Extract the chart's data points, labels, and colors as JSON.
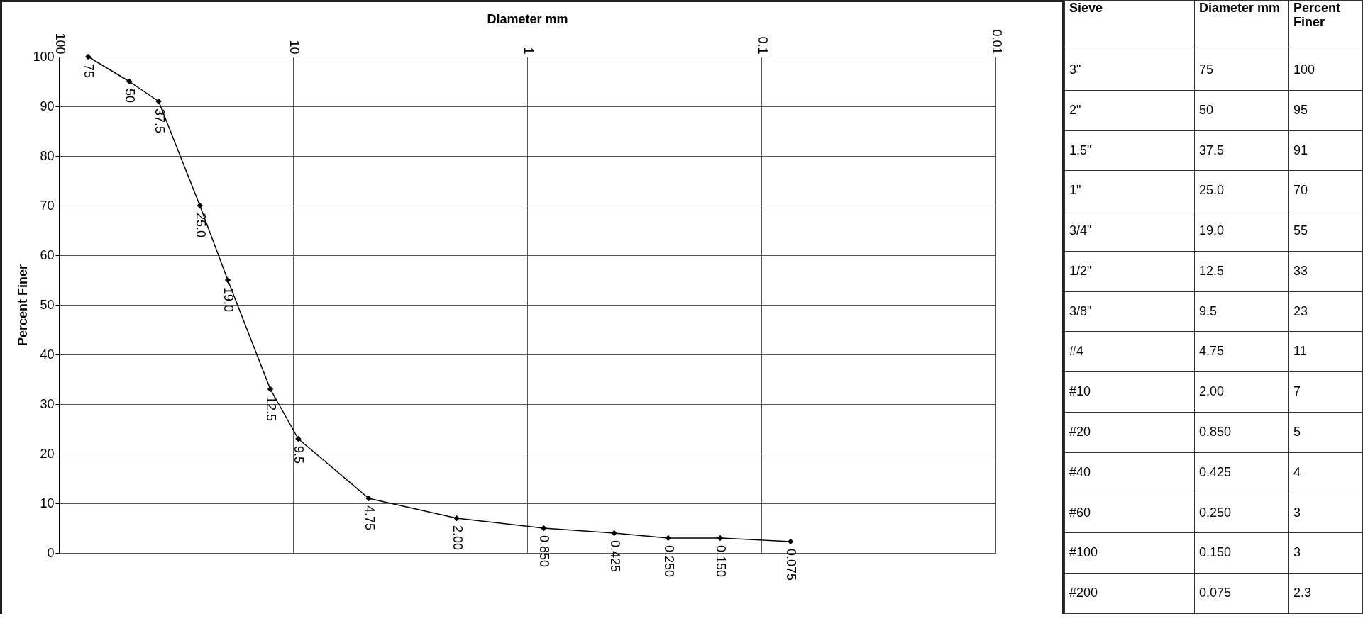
{
  "chart_data": [
    {
      "type": "line",
      "xlabel": "Diameter mm",
      "ylabel": "Percent Finer",
      "log": "x",
      "xlim": [
        100,
        0.01
      ],
      "xticks": [
        100,
        10,
        1,
        0.1,
        0.01
      ],
      "ylim": [
        0,
        100
      ],
      "yticks": [
        0,
        10,
        20,
        30,
        40,
        50,
        60,
        70,
        80,
        90,
        100
      ],
      "grid": true,
      "marker": "diamond",
      "line_style": "solid",
      "series": [
        {
          "color": "#000000",
          "x": [
            75,
            50,
            37.5,
            25,
            19,
            12.5,
            9.5,
            4.75,
            2,
            0.85,
            0.425,
            0.25,
            0.15,
            0.075
          ],
          "values": [
            100,
            95,
            91,
            70,
            55,
            33,
            23,
            11,
            7,
            5,
            4,
            3,
            3,
            2.3
          ]
        }
      ],
      "annotations": [
        {
          "text": "75",
          "x": 75,
          "y": 100
        },
        {
          "text": "50",
          "x": 50,
          "y": 95
        },
        {
          "text": "37.5",
          "x": 37.5,
          "y": 91
        },
        {
          "text": "25.0",
          "x": 25,
          "y": 70
        },
        {
          "text": "19.0",
          "x": 19,
          "y": 55
        },
        {
          "text": "12.5",
          "x": 12.5,
          "y": 33
        },
        {
          "text": "9.5",
          "x": 9.5,
          "y": 23
        },
        {
          "text": "4.75",
          "x": 4.75,
          "y": 11
        },
        {
          "text": "2.00",
          "x": 2,
          "y": 7
        },
        {
          "text": "0.850",
          "x": 0.85,
          "y": 5
        },
        {
          "text": "0.425",
          "x": 0.425,
          "y": 4
        },
        {
          "text": "0.250",
          "x": 0.25,
          "y": 3
        },
        {
          "text": "0.150",
          "x": 0.15,
          "y": 3
        },
        {
          "text": "0.075",
          "x": 0.075,
          "y": 2.3
        }
      ]
    },
    {
      "type": "other",
      "annotations": [
        "Sieve",
        "Diameter mm",
        "Percent Finer",
        "3\"",
        "75",
        "100",
        "2\"",
        "50",
        "95",
        "1.5\"",
        "37.5",
        "91",
        "1\"",
        "25.0",
        "70",
        "3/4\"",
        "19.0",
        "55",
        "1/2\"",
        "12.5",
        "33",
        "3/8\"",
        "9.5",
        "23",
        "#4",
        "4.75",
        "11",
        "#10",
        "2.00",
        "7",
        "#20",
        "0.850",
        "5",
        "#40",
        "0.425",
        "4",
        "#60",
        "0.250",
        "3",
        "#100",
        "0.150",
        "3",
        "#200",
        "0.075",
        "2.3"
      ]
    }
  ]
}
